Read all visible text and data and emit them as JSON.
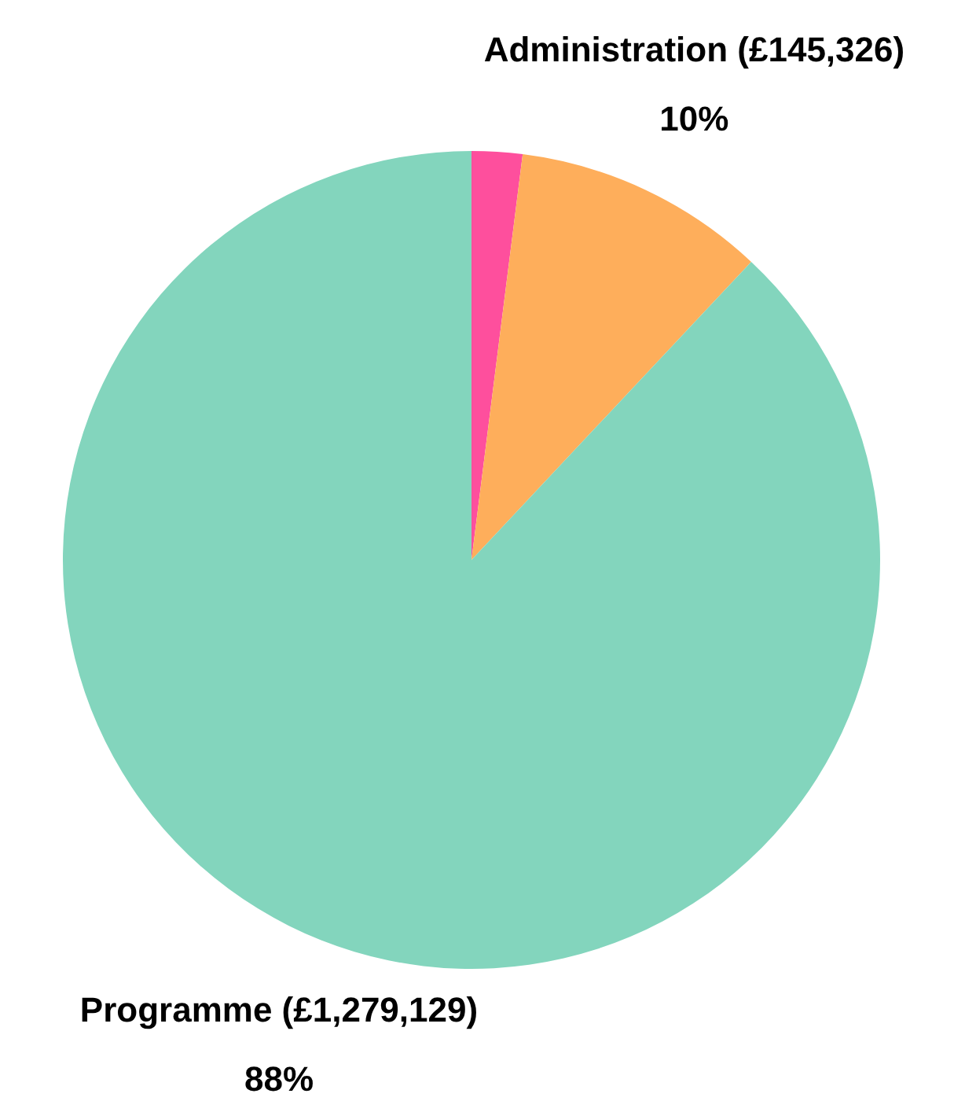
{
  "chart_data": {
    "type": "pie",
    "categories": [
      null,
      "Administration (£145,326)",
      "Programme (£1,279,129)"
    ],
    "values": [
      2,
      10,
      88
    ],
    "colors": [
      "#fe4f9d",
      "#feae5b",
      "#83d5bd"
    ],
    "value_labels": [
      null,
      "10%",
      "88%"
    ],
    "legend": false
  }
}
